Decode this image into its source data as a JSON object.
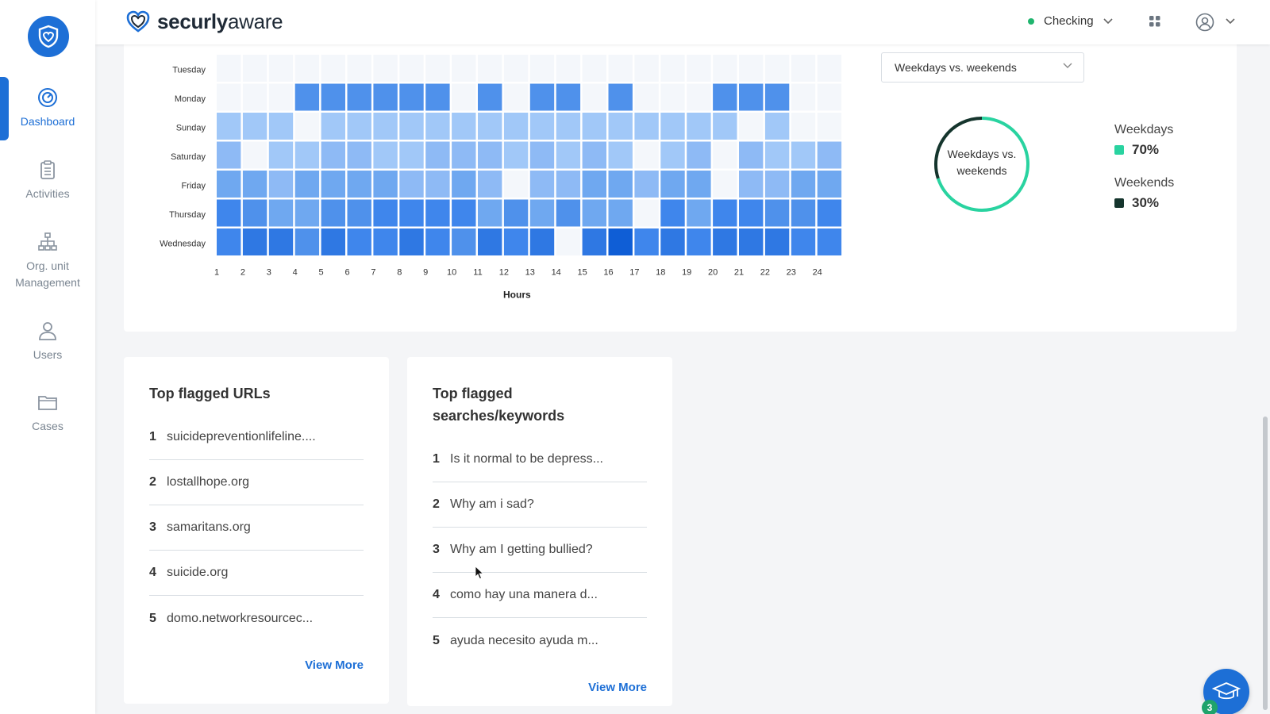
{
  "brand": {
    "name_bold": "securly",
    "name_light": "aware"
  },
  "header": {
    "status_label": "Checking",
    "status_color": "#1fb56e"
  },
  "sidebar": {
    "items": [
      {
        "label": "Dashboard",
        "icon": "speedometer-icon",
        "active": true
      },
      {
        "label": "Activities",
        "icon": "clipboard-icon",
        "active": false
      },
      {
        "label": "Org. unit Management",
        "icon": "org-chart-icon",
        "active": false
      },
      {
        "label": "Users",
        "icon": "user-icon",
        "active": false
      },
      {
        "label": "Cases",
        "icon": "folder-icon",
        "active": false
      }
    ]
  },
  "heatmap": {
    "xlabel": "Hours",
    "days": [
      "Tuesday",
      "Monday",
      "Sunday",
      "Saturday",
      "Friday",
      "Thursday",
      "Wednesday"
    ],
    "hours": [
      "1",
      "2",
      "3",
      "4",
      "5",
      "6",
      "7",
      "8",
      "9",
      "10",
      "11",
      "12",
      "13",
      "14",
      "15",
      "16",
      "17",
      "18",
      "19",
      "20",
      "21",
      "22",
      "23",
      "24"
    ]
  },
  "chart_data": [
    {
      "type": "heatmap",
      "title": "",
      "xlabel": "Hours",
      "ylabel": "",
      "x": [
        1,
        2,
        3,
        4,
        5,
        6,
        7,
        8,
        9,
        10,
        11,
        12,
        13,
        14,
        15,
        16,
        17,
        18,
        19,
        20,
        21,
        22,
        23,
        24
      ],
      "y": [
        "Tuesday",
        "Monday",
        "Sunday",
        "Saturday",
        "Friday",
        "Thursday",
        "Wednesday"
      ],
      "values": [
        [
          0,
          0,
          0,
          0,
          0,
          0,
          0,
          0,
          0,
          0,
          0,
          0,
          0,
          0,
          0,
          0,
          0,
          0,
          0,
          0,
          0,
          0,
          0,
          0
        ],
        [
          0,
          0,
          0,
          5,
          5,
          5,
          5,
          5,
          5,
          0,
          5,
          0,
          5,
          5,
          0,
          5,
          0,
          0,
          0,
          5,
          5,
          5,
          0,
          0
        ],
        [
          2,
          2,
          2,
          0,
          2,
          2,
          2,
          2,
          2,
          2,
          2,
          2,
          2,
          2,
          2,
          2,
          2,
          2,
          2,
          2,
          0,
          2,
          0,
          0
        ],
        [
          3,
          0,
          2,
          2,
          3,
          3,
          2,
          2,
          3,
          3,
          3,
          2,
          3,
          2,
          3,
          2,
          0,
          2,
          3,
          0,
          3,
          2,
          2,
          3
        ],
        [
          4,
          4,
          3,
          4,
          4,
          4,
          4,
          3,
          3,
          4,
          3,
          0,
          3,
          3,
          4,
          4,
          3,
          4,
          4,
          0,
          3,
          3,
          4,
          4
        ],
        [
          6,
          5,
          4,
          4,
          5,
          5,
          6,
          6,
          6,
          6,
          4,
          5,
          4,
          5,
          4,
          4,
          0,
          6,
          4,
          6,
          6,
          5,
          5,
          6
        ],
        [
          6,
          7,
          7,
          5,
          7,
          6,
          6,
          7,
          6,
          5,
          7,
          6,
          7,
          0,
          7,
          8,
          6,
          7,
          6,
          7,
          7,
          7,
          6,
          6
        ]
      ],
      "color_scale": [
        "#f4f7fb",
        "#b3d3fb",
        "#a1c8f8",
        "#8ebaf5",
        "#6fa8f0",
        "#4f91eb",
        "#3f86ec",
        "#2f78e3",
        "#0f5ed6"
      ]
    },
    {
      "type": "pie",
      "title": "Weekdays vs. weekends",
      "categories": [
        "Weekdays",
        "Weekends"
      ],
      "values": [
        70,
        30
      ],
      "colors": [
        "#29d3a0",
        "#15352d"
      ]
    }
  ],
  "donut": {
    "selector_value": "Weekdays vs. weekends",
    "center_label": "Weekdays vs. weekends",
    "legend": [
      {
        "name": "Weekdays",
        "value": "70%",
        "color": "#29d3a0"
      },
      {
        "name": "Weekends",
        "value": "30%",
        "color": "#15352d"
      }
    ]
  },
  "top_urls": {
    "title": "Top flagged URLs",
    "items": [
      {
        "rank": "1",
        "text": "suicidepreventionlifeline...."
      },
      {
        "rank": "2",
        "text": "lostallhope.org"
      },
      {
        "rank": "3",
        "text": "samaritans.org"
      },
      {
        "rank": "4",
        "text": "suicide.org"
      },
      {
        "rank": "5",
        "text": "domo.networkresourcec..."
      }
    ],
    "view_more": "View More"
  },
  "top_searches": {
    "title_line1": "Top flagged",
    "title_line2": "searches/keywords",
    "items": [
      {
        "rank": "1",
        "text": "Is it normal to be depress..."
      },
      {
        "rank": "2",
        "text": "Why am i sad?"
      },
      {
        "rank": "3",
        "text": "Why am I getting bullied?"
      },
      {
        "rank": "4",
        "text": "como hay una manera d..."
      },
      {
        "rank": "5",
        "text": "ayuda necesito ayuda m..."
      }
    ],
    "view_more": "View More"
  },
  "help_fab": {
    "badge": "3",
    "icon": "graduation-cap-icon"
  }
}
